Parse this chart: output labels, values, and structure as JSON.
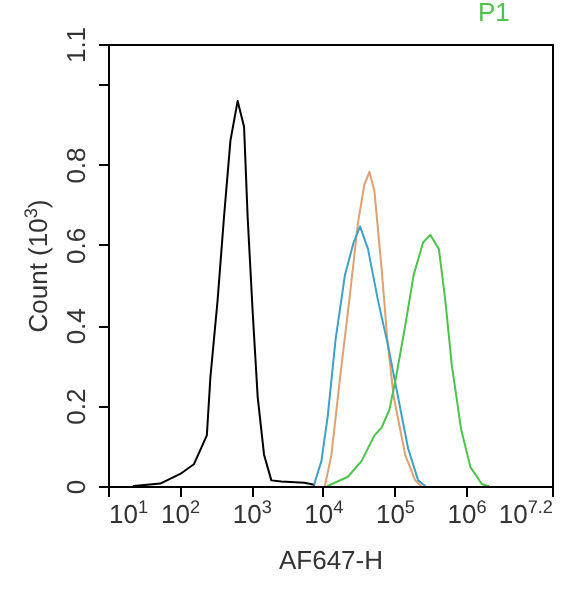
{
  "chart_data": {
    "type": "line",
    "xlabel": "AF647-H",
    "ylabel": "Count (10$^{3}$)",
    "log": "x",
    "grid": false,
    "legend": "top",
    "xlim": [
      10,
      15848932
    ],
    "xticks": [
      {
        "value": 10,
        "label": "10$^{1}$"
      },
      {
        "value": 100,
        "label": "10$^{2}$"
      },
      {
        "value": 1000,
        "label": "10$^{3}$"
      },
      {
        "value": 10000,
        "label": "10$^{4}$"
      },
      {
        "value": 100000,
        "label": "10$^{5}$"
      },
      {
        "value": 1000000,
        "label": "10$^{6}$"
      },
      {
        "value": 15848932,
        "label": "10$^{7.2}$"
      }
    ],
    "ylim": [
      0,
      1.1
    ],
    "yticks": [
      0,
      0.2,
      0.4,
      0.6,
      0.8,
      {
        "value": 1,
        "label": null
      },
      1.1
    ],
    "series": [
      {
        "color": "#000000",
        "x": [
          22.9,
          53.7,
          102,
          158,
          240,
          269,
          339,
          417,
          513,
          646,
          794,
          891,
          1050,
          1230,
          1510,
          1910,
          2630,
          5500,
          7590
        ],
        "values": [
          0,
          0.006,
          0.03,
          0.054,
          0.126,
          0.27,
          0.462,
          0.67,
          0.86,
          0.958,
          0.894,
          0.67,
          0.43,
          0.222,
          0.078,
          0.014,
          0.011,
          0.008,
          0.003
        ]
      },
      {
        "color": "#e0a070",
        "x": [
          10700,
          13200,
          17400,
          23400,
          30900,
          38000,
          44700,
          52500,
          66100,
          79400,
          97700,
          141000,
          195000,
          234000
        ],
        "values": [
          0,
          0.078,
          0.27,
          0.462,
          0.654,
          0.75,
          0.782,
          0.734,
          0.542,
          0.366,
          0.222,
          0.078,
          0.014,
          0
        ]
      },
      {
        "color": "#3fa0c8",
        "x": [
          7590,
          9550,
          11700,
          15100,
          20400,
          26900,
          33100,
          42700,
          58900,
          81300,
          112000,
          155000,
          214000,
          269000
        ],
        "values": [
          0.005,
          0.062,
          0.174,
          0.366,
          0.526,
          0.606,
          0.646,
          0.59,
          0.462,
          0.35,
          0.222,
          0.094,
          0.014,
          0
        ]
      },
      {
        "name": "P1",
        "color": "#4cc34c",
        "x": [
          11700,
          22400,
          34700,
          52500,
          66100,
          85100,
          105000,
          141000,
          186000,
          251000,
          316000,
          417000,
          513000,
          631000,
          851000,
          1150000,
          1660000,
          2040000
        ],
        "values": [
          0,
          0.023,
          0.062,
          0.126,
          0.145,
          0.19,
          0.27,
          0.398,
          0.526,
          0.606,
          0.625,
          0.59,
          0.462,
          0.302,
          0.142,
          0.047,
          0.005,
          0
        ]
      }
    ]
  }
}
